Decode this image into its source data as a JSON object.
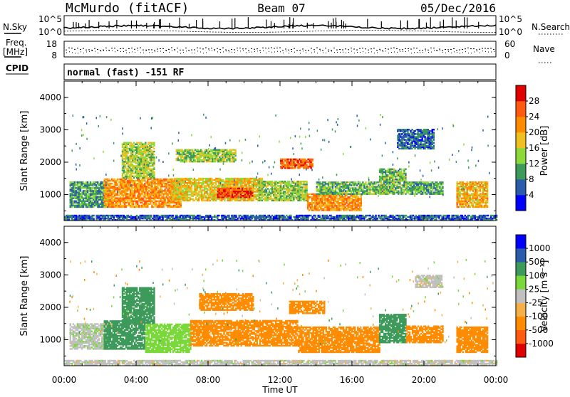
{
  "header": {
    "station": "McMurdo (fitACF)",
    "beam": "Beam 07",
    "date": "05/Dec/2016"
  },
  "nsky_panel": {
    "left_label": "N.Sky",
    "left_ticks": [
      "10^5",
      "10^0"
    ],
    "right_ticks": [
      "10^5",
      "10^0"
    ],
    "right_label": "N.Search"
  },
  "freq_panel": {
    "left_label_line1": "Freq.",
    "left_label_line2": "[MHz]",
    "left_ticks": [
      "18",
      "8"
    ],
    "right_ticks": [
      "60",
      "0"
    ],
    "right_label": "Nave"
  },
  "cpid": {
    "label": "CPID",
    "program": "normal (fast) -151 RF"
  },
  "colors": {
    "power": [
      "#0000ff",
      "#2a5caa",
      "#3d9a5a",
      "#8cd93c",
      "#f0c020",
      "#ff8c00",
      "#ff5a10",
      "#e00000"
    ],
    "velocity": [
      "#e00000",
      "#ff5a10",
      "#ff8c00",
      "#f5b04a",
      "#c0c0c0",
      "#7ad83a",
      "#3d9a5a",
      "#2a5caa",
      "#0000ff"
    ]
  },
  "chart_data": [
    {
      "type": "heatmap",
      "title": "",
      "ylabel": "Slant Range [km]",
      "ylim": [
        200,
        4500
      ],
      "yticks": [
        "1000",
        "2000",
        "3000",
        "4000"
      ],
      "xticks": [
        "00:00",
        "04:00",
        "08:00",
        "12:00",
        "16:00",
        "20:00",
        "00:00"
      ],
      "xlim_hours": [
        0,
        24
      ],
      "colorbar": {
        "label": "Power [dB]",
        "ticks": [
          "4",
          "8",
          "12",
          "16",
          "20",
          "24",
          "28"
        ]
      },
      "regions": [
        {
          "t0": 0.0,
          "t1": 24.0,
          "r0": 200,
          "r1": 380,
          "value": 6
        },
        {
          "t0": 0.3,
          "t1": 2.5,
          "r0": 600,
          "r1": 1400,
          "value": 10
        },
        {
          "t0": 2.2,
          "t1": 6.5,
          "r0": 600,
          "r1": 1500,
          "value": 22
        },
        {
          "t0": 3.2,
          "t1": 5.0,
          "r0": 1500,
          "r1": 2600,
          "value": 15
        },
        {
          "t0": 6.0,
          "t1": 11.0,
          "r0": 800,
          "r1": 1500,
          "value": 18
        },
        {
          "t0": 8.5,
          "t1": 10.5,
          "r0": 900,
          "r1": 1200,
          "value": 27
        },
        {
          "t0": 6.2,
          "t1": 9.5,
          "r0": 2000,
          "r1": 2400,
          "value": 14
        },
        {
          "t0": 10.8,
          "t1": 13.5,
          "r0": 800,
          "r1": 1400,
          "value": 14
        },
        {
          "t0": 12.0,
          "t1": 13.8,
          "r0": 1800,
          "r1": 2100,
          "value": 26
        },
        {
          "t0": 13.5,
          "t1": 16.5,
          "r0": 500,
          "r1": 1000,
          "value": 22
        },
        {
          "t0": 14.0,
          "t1": 17.5,
          "r0": 1000,
          "r1": 1400,
          "value": 12
        },
        {
          "t0": 17.5,
          "t1": 19.0,
          "r0": 1000,
          "r1": 1800,
          "value": 12
        },
        {
          "t0": 19.0,
          "t1": 21.0,
          "r0": 1000,
          "r1": 1400,
          "value": 11
        },
        {
          "t0": 21.8,
          "t1": 23.5,
          "r0": 600,
          "r1": 1400,
          "value": 20
        },
        {
          "t0": 18.5,
          "t1": 20.5,
          "r0": 2400,
          "r1": 3000,
          "value": 7
        }
      ]
    },
    {
      "type": "heatmap",
      "title": "",
      "ylabel": "Slant Range [km]",
      "xlabel": "Time UT",
      "ylim": [
        200,
        4500
      ],
      "yticks": [
        "1000",
        "2000",
        "3000",
        "4000"
      ],
      "xticks": [
        "00:00",
        "04:00",
        "08:00",
        "12:00",
        "16:00",
        "20:00",
        "00:00"
      ],
      "xlim_hours": [
        0,
        24
      ],
      "colorbar": {
        "label": "Velocity [m s⁻¹]",
        "ticks": [
          "-1000",
          "-500",
          "-100",
          "-25",
          "25",
          "100",
          "500",
          "1000"
        ]
      },
      "regions": [
        {
          "t0": 0.0,
          "t1": 24.0,
          "r0": 200,
          "r1": 380,
          "value": 0
        },
        {
          "t0": 0.3,
          "t1": 2.5,
          "r0": 700,
          "r1": 1500,
          "value": 10
        },
        {
          "t0": 2.2,
          "t1": 4.5,
          "r0": 700,
          "r1": 1600,
          "value": 150
        },
        {
          "t0": 4.5,
          "t1": 7.0,
          "r0": 600,
          "r1": 1500,
          "value": 60
        },
        {
          "t0": 3.2,
          "t1": 5.0,
          "r0": 1500,
          "r1": 2600,
          "value": 150
        },
        {
          "t0": 7.0,
          "t1": 13.0,
          "r0": 800,
          "r1": 1600,
          "value": -150
        },
        {
          "t0": 7.5,
          "t1": 10.5,
          "r0": 1900,
          "r1": 2400,
          "value": -150
        },
        {
          "t0": 12.5,
          "t1": 14.5,
          "r0": 1800,
          "r1": 2200,
          "value": -150
        },
        {
          "t0": 13.0,
          "t1": 17.5,
          "r0": 600,
          "r1": 1400,
          "value": -150
        },
        {
          "t0": 17.5,
          "t1": 19.0,
          "r0": 900,
          "r1": 1800,
          "value": 150
        },
        {
          "t0": 19.0,
          "t1": 21.0,
          "r0": 900,
          "r1": 1400,
          "value": -150
        },
        {
          "t0": 21.8,
          "t1": 23.5,
          "r0": 600,
          "r1": 1400,
          "value": -150
        },
        {
          "t0": 19.5,
          "t1": 21.0,
          "r0": 2600,
          "r1": 3000,
          "value": 0
        }
      ]
    }
  ]
}
